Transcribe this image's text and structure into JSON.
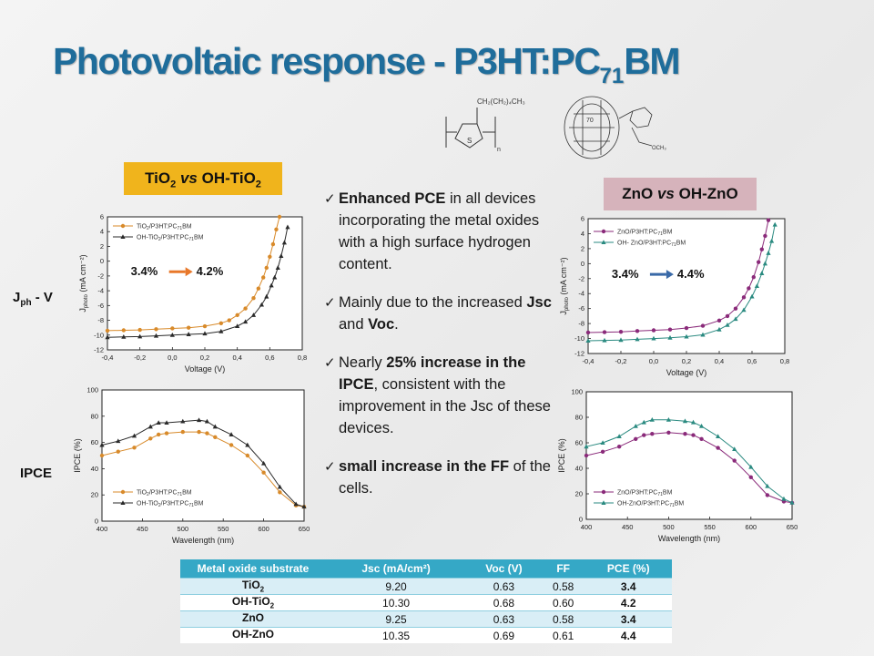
{
  "slide": {
    "title_main": "Photovoltaic response - P3HT:PC",
    "title_sub": "71",
    "title_end": "BM"
  },
  "structures": {
    "p3ht_chain": "CH₂(CH₂)₄CH₃",
    "p3ht_atom": "S",
    "p3ht_n": "n",
    "pcbm_cage": "70",
    "pcbm_ester": "OCH₃"
  },
  "tags": {
    "tio2": {
      "a": "TiO",
      "a_sub": "2",
      "vs": "vs",
      "b": "OH-TiO",
      "b_sub": "2",
      "color": "#f0b41c"
    },
    "zno": {
      "a": "ZnO",
      "vs": "vs",
      "b": "OH-ZnO",
      "color": "#d6b3bb"
    }
  },
  "row_labels": {
    "jv_main": "J",
    "jv_sub": "ph",
    "jv_end": " - V",
    "ipce": "IPCE"
  },
  "bullets": [
    {
      "pre": "",
      "bold": "Enhanced PCE",
      "post": " in all devices incorporating the metal oxides with a high surface hydrogen content."
    },
    {
      "pre": "Mainly due to the increased ",
      "bold": "Jsc",
      "mid": " and ",
      "bold2": "Voc",
      "post": "."
    },
    {
      "pre": "Nearly ",
      "bold": "25% increase in the IPCE",
      "post": ", consistent with the improvement in the Jsc of these devices."
    },
    {
      "pre": "",
      "bold": "small increase in the FF",
      "post": " of the cells."
    }
  ],
  "table": {
    "headers": [
      "Metal oxide substrate",
      "Jsc (mA/cm²)",
      "Voc (V)",
      "FF",
      "PCE (%)"
    ],
    "rows": [
      {
        "label": "TiO",
        "label_sub": "2",
        "jsc": "9.20",
        "voc": "0.63",
        "ff": "0.58",
        "pce": "3.4"
      },
      {
        "label": "OH-TiO",
        "label_sub": "2",
        "jsc": "10.30",
        "voc": "0.68",
        "ff": "0.60",
        "pce": "4.2"
      },
      {
        "label": "ZnO",
        "label_sub": "",
        "jsc": "9.25",
        "voc": "0.63",
        "ff": "0.58",
        "pce": "3.4"
      },
      {
        "label": "OH-ZnO",
        "label_sub": "",
        "jsc": "10.35",
        "voc": "0.69",
        "ff": "0.61",
        "pce": "4.4"
      }
    ],
    "header_color": "#35a8c6"
  },
  "chart_data": [
    {
      "id": "jv_tio2",
      "type": "line",
      "xlabel": "Voltage (V)",
      "ylabel": "J",
      "ylabel_sub": "photo",
      "ylabel_unit": " (mA cm⁻²)",
      "xlim": [
        -0.4,
        0.8
      ],
      "ylim": [
        -12,
        6
      ],
      "xticks": [
        "-0,4",
        "-0,2",
        "0,0",
        "0,2",
        "0,4",
        "0,6",
        "0,8"
      ],
      "yticks": [
        "-12",
        "-10",
        "-8",
        "-6",
        "-4",
        "-2",
        "0",
        "2",
        "4",
        "6"
      ],
      "annotation": {
        "left": "3.4%",
        "right": "4.2%",
        "arrow_color": "#e8782a"
      },
      "series": [
        {
          "name": "TiO2/P3HT:PC71BM",
          "color": "#d88a2a",
          "marker": "circle",
          "x": [
            -0.4,
            -0.3,
            -0.2,
            -0.1,
            0.0,
            0.1,
            0.2,
            0.3,
            0.35,
            0.4,
            0.45,
            0.5,
            0.53,
            0.56,
            0.58,
            0.6,
            0.62,
            0.64,
            0.66
          ],
          "y": [
            -9.4,
            -9.35,
            -9.3,
            -9.2,
            -9.1,
            -9.0,
            -8.8,
            -8.4,
            -8.0,
            -7.3,
            -6.4,
            -5.0,
            -3.7,
            -2.2,
            -0.9,
            0.6,
            2.3,
            4.3,
            6.0
          ]
        },
        {
          "name": "OH-TiO2/P3HT:PC71BM",
          "color": "#2a2a2a",
          "marker": "triangle",
          "x": [
            -0.4,
            -0.3,
            -0.2,
            -0.1,
            0.0,
            0.1,
            0.2,
            0.3,
            0.4,
            0.45,
            0.5,
            0.55,
            0.58,
            0.61,
            0.63,
            0.65,
            0.67,
            0.69,
            0.71
          ],
          "y": [
            -10.3,
            -10.25,
            -10.2,
            -10.1,
            -10.0,
            -9.9,
            -9.8,
            -9.5,
            -8.8,
            -8.2,
            -7.3,
            -5.9,
            -4.8,
            -3.3,
            -2.2,
            -0.9,
            0.7,
            2.5,
            4.6
          ]
        }
      ]
    },
    {
      "id": "ipce_tio2",
      "type": "line",
      "xlabel": "Wavelength (nm)",
      "ylabel": "IPCE (%)",
      "xlim": [
        400,
        650
      ],
      "ylim": [
        0,
        100
      ],
      "xticks": [
        "400",
        "450",
        "500",
        "550",
        "600",
        "650"
      ],
      "yticks": [
        "0",
        "20",
        "40",
        "60",
        "80",
        "100"
      ],
      "series": [
        {
          "name": "TiO2/P3HT:PC71BM",
          "color": "#d88a2a",
          "marker": "circle",
          "x": [
            400,
            420,
            440,
            460,
            470,
            480,
            500,
            520,
            530,
            540,
            560,
            580,
            600,
            620,
            640,
            650
          ],
          "y": [
            50,
            53,
            56,
            63,
            66,
            67,
            68,
            68,
            67,
            64,
            58,
            50,
            37,
            22,
            12,
            11
          ]
        },
        {
          "name": "OH-TiO2/P3HT:PC71BM",
          "color": "#2a2a2a",
          "marker": "triangle",
          "x": [
            400,
            420,
            440,
            460,
            470,
            480,
            500,
            520,
            530,
            540,
            560,
            580,
            600,
            620,
            640,
            650
          ],
          "y": [
            58,
            61,
            65,
            72,
            75,
            75,
            76,
            77,
            76,
            72,
            66,
            58,
            44,
            26,
            13,
            11
          ]
        }
      ]
    },
    {
      "id": "jv_zno",
      "type": "line",
      "xlabel": "Voltage (V)",
      "ylabel": "J",
      "ylabel_sub": "photo",
      "ylabel_unit": " (mA cm⁻²)",
      "xlim": [
        -0.4,
        0.8
      ],
      "ylim": [
        -12,
        6
      ],
      "xticks": [
        "-0,4",
        "-0,2",
        "0,0",
        "0,2",
        "0,4",
        "0,6",
        "0,8"
      ],
      "yticks": [
        "-12",
        "-10",
        "-8",
        "-6",
        "-4",
        "-2",
        "0",
        "2",
        "4",
        "6"
      ],
      "annotation": {
        "left": "3.4%",
        "right": "4.4%",
        "arrow_color": "#3a6aa8"
      },
      "series": [
        {
          "name": "ZnO/P3HT:PC71BM",
          "color": "#8a2a7a",
          "marker": "circle",
          "x": [
            -0.4,
            -0.3,
            -0.2,
            -0.1,
            0.0,
            0.1,
            0.2,
            0.3,
            0.4,
            0.45,
            0.5,
            0.55,
            0.58,
            0.61,
            0.64,
            0.66,
            0.68,
            0.7
          ],
          "y": [
            -9.2,
            -9.15,
            -9.1,
            -9.0,
            -8.9,
            -8.8,
            -8.6,
            -8.3,
            -7.6,
            -7.0,
            -6.0,
            -4.5,
            -3.3,
            -1.8,
            0.2,
            1.9,
            3.7,
            5.8
          ]
        },
        {
          "name": "OH- ZnO/P3HT:PC71BM",
          "color": "#2a8a80",
          "marker": "triangle",
          "x": [
            -0.4,
            -0.3,
            -0.2,
            -0.1,
            0.0,
            0.1,
            0.2,
            0.3,
            0.4,
            0.45,
            0.5,
            0.55,
            0.6,
            0.63,
            0.66,
            0.68,
            0.7,
            0.72,
            0.74
          ],
          "y": [
            -10.3,
            -10.25,
            -10.2,
            -10.1,
            -10.0,
            -9.9,
            -9.75,
            -9.5,
            -8.8,
            -8.2,
            -7.4,
            -6.2,
            -4.4,
            -3.0,
            -1.3,
            0.0,
            1.4,
            3.0,
            5.2
          ]
        }
      ]
    },
    {
      "id": "ipce_zno",
      "type": "line",
      "xlabel": "Wavelength (nm)",
      "ylabel": "IPCE (%)",
      "xlim": [
        400,
        650
      ],
      "ylim": [
        0,
        100
      ],
      "xticks": [
        "400",
        "450",
        "500",
        "550",
        "600",
        "650"
      ],
      "yticks": [
        "0",
        "20",
        "40",
        "60",
        "80",
        "100"
      ],
      "series": [
        {
          "name": "ZnO/P3HT:PC71BM",
          "color": "#8a2a7a",
          "marker": "circle",
          "x": [
            400,
            420,
            440,
            460,
            470,
            480,
            500,
            520,
            530,
            540,
            560,
            580,
            600,
            620,
            640,
            650
          ],
          "y": [
            50,
            53,
            57,
            63,
            66,
            67,
            68,
            67,
            66,
            63,
            56,
            46,
            33,
            19,
            14,
            13
          ]
        },
        {
          "name": "OH-ZnO/P3HT:PC71BM",
          "color": "#2a8a80",
          "marker": "triangle",
          "x": [
            400,
            420,
            440,
            460,
            470,
            480,
            500,
            520,
            530,
            540,
            560,
            580,
            600,
            620,
            640,
            650
          ],
          "y": [
            57,
            60,
            65,
            73,
            76,
            78,
            78,
            77,
            76,
            73,
            65,
            55,
            41,
            26,
            16,
            13
          ]
        }
      ]
    }
  ]
}
